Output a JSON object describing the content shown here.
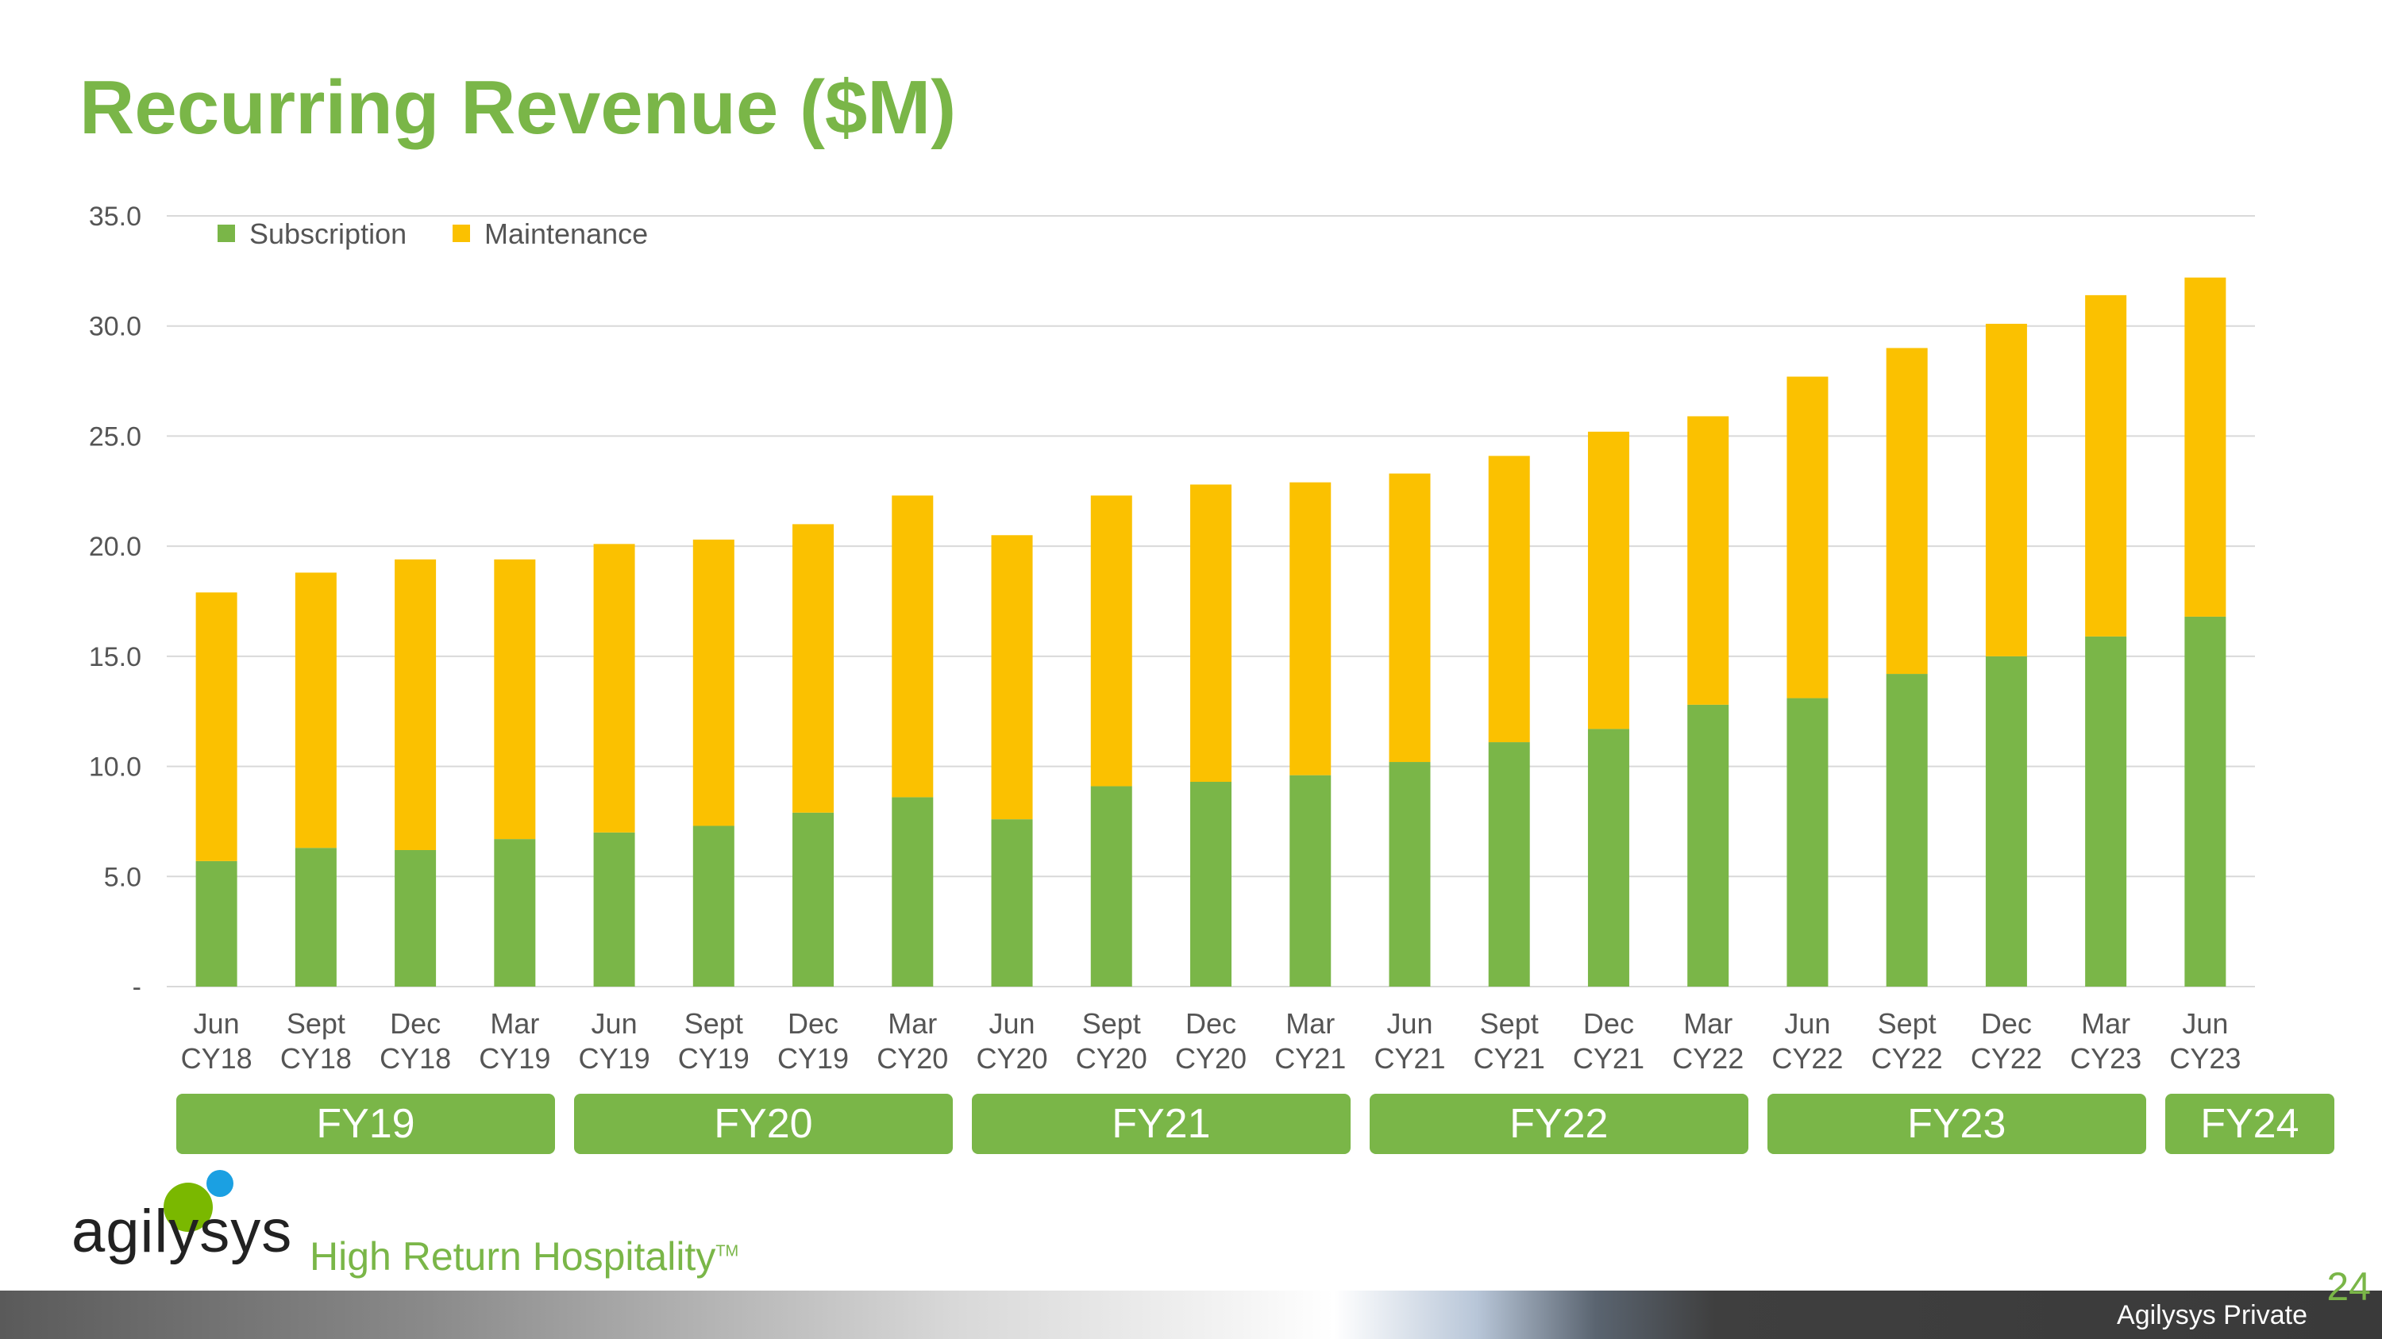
{
  "slide": {
    "title": "Recurring Revenue ($M)",
    "page_number": "24",
    "footer_text": "Agilysys Private"
  },
  "logo": {
    "wordmark": "agilysys",
    "tagline": "High Return Hospitality",
    "trademark": "TM",
    "colors": {
      "green_dot": "#7ab800",
      "blue_dot": "#1ba0e2"
    }
  },
  "fiscal_years": [
    {
      "label": "FY19",
      "from": 0,
      "to": 3
    },
    {
      "label": "FY20",
      "from": 4,
      "to": 7
    },
    {
      "label": "FY21",
      "from": 8,
      "to": 11
    },
    {
      "label": "FY22",
      "from": 12,
      "to": 15
    },
    {
      "label": "FY23",
      "from": 16,
      "to": 19
    },
    {
      "label": "FY24",
      "from": 20,
      "to": 20
    }
  ],
  "chart_data": {
    "type": "bar",
    "stacked": true,
    "title": "Recurring Revenue ($M)",
    "categories": [
      [
        "Jun",
        "CY18"
      ],
      [
        "Sept",
        "CY18"
      ],
      [
        "Dec",
        "CY18"
      ],
      [
        "Mar",
        "CY19"
      ],
      [
        "Jun",
        "CY19"
      ],
      [
        "Sept",
        "CY19"
      ],
      [
        "Dec",
        "CY19"
      ],
      [
        "Mar",
        "CY20"
      ],
      [
        "Jun",
        "CY20"
      ],
      [
        "Sept",
        "CY20"
      ],
      [
        "Dec",
        "CY20"
      ],
      [
        "Mar",
        "CY21"
      ],
      [
        "Jun",
        "CY21"
      ],
      [
        "Sept",
        "CY21"
      ],
      [
        "Dec",
        "CY21"
      ],
      [
        "Mar",
        "CY22"
      ],
      [
        "Jun",
        "CY22"
      ],
      [
        "Sept",
        "CY22"
      ],
      [
        "Dec",
        "CY22"
      ],
      [
        "Mar",
        "CY23"
      ],
      [
        "Jun",
        "CY23"
      ]
    ],
    "series": [
      {
        "name": "Subscription",
        "color": "#7ab648",
        "values": [
          5.7,
          6.3,
          6.2,
          6.7,
          7.0,
          7.3,
          7.9,
          8.6,
          7.6,
          9.1,
          9.3,
          9.6,
          10.2,
          11.1,
          11.7,
          12.8,
          13.1,
          14.2,
          15.0,
          15.9,
          16.8
        ]
      },
      {
        "name": "Maintenance",
        "color": "#fbc100",
        "values": [
          12.2,
          12.5,
          13.2,
          12.7,
          13.1,
          13.0,
          13.1,
          13.7,
          12.9,
          13.2,
          13.5,
          13.3,
          13.1,
          13.0,
          13.5,
          13.1,
          14.6,
          14.8,
          15.1,
          15.5,
          15.4
        ]
      }
    ],
    "ylim": [
      0,
      35
    ],
    "y_ticks": [
      {
        "value": 0,
        "label": "-"
      },
      {
        "value": 5,
        "label": "5.0"
      },
      {
        "value": 10,
        "label": "10.0"
      },
      {
        "value": 15,
        "label": "15.0"
      },
      {
        "value": 20,
        "label": "20.0"
      },
      {
        "value": 25,
        "label": "25.0"
      },
      {
        "value": 30,
        "label": "30.0"
      },
      {
        "value": 35,
        "label": "35.0"
      }
    ],
    "grid": true,
    "legend_position": "top-left"
  }
}
